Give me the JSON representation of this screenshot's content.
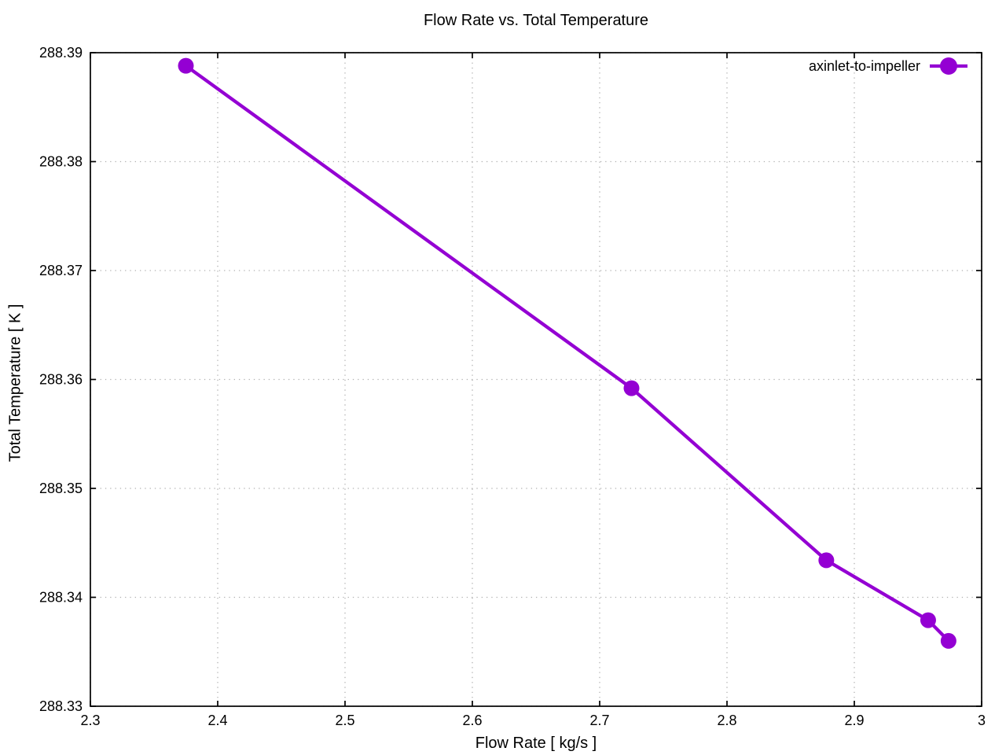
{
  "figure": {
    "background_color": "#ffffff",
    "text_color": "#000000"
  },
  "chart_data": {
    "type": "line",
    "title": "Flow Rate vs. Total Temperature",
    "xlabel": "Flow Rate [ kg/s ]",
    "ylabel": "Total Temperature [ K ]",
    "xlim": [
      2.3,
      3.0
    ],
    "ylim": [
      288.33,
      288.39
    ],
    "grid": true,
    "grid_style": "dotted",
    "grid_color": "#b0b0b0",
    "x_ticks": {
      "values": [
        2.3,
        2.4,
        2.5,
        2.6,
        2.7,
        2.8,
        2.9,
        3.0
      ],
      "labels": [
        "2.3",
        "2.4",
        "2.5",
        "2.6",
        "2.7",
        "2.8",
        "2.9",
        "3"
      ]
    },
    "y_ticks": {
      "values": [
        288.33,
        288.34,
        288.35,
        288.36,
        288.37,
        288.38,
        288.39
      ],
      "labels": [
        "288.33",
        "288.34",
        "288.35",
        "288.36",
        "288.37",
        "288.38",
        "288.39"
      ]
    },
    "legend": {
      "position": "top-right-inside",
      "entries": [
        {
          "label": "axinlet-to-impeller",
          "color": "#9400d3",
          "marker": "circle"
        }
      ]
    },
    "series": [
      {
        "name": "axinlet-to-impeller",
        "color": "#9400d3",
        "marker": "circle",
        "points": [
          [
            2.375,
            288.3888
          ],
          [
            2.725,
            288.3592
          ],
          [
            2.878,
            288.3434
          ],
          [
            2.958,
            288.3379
          ],
          [
            2.974,
            288.336
          ]
        ]
      }
    ]
  }
}
